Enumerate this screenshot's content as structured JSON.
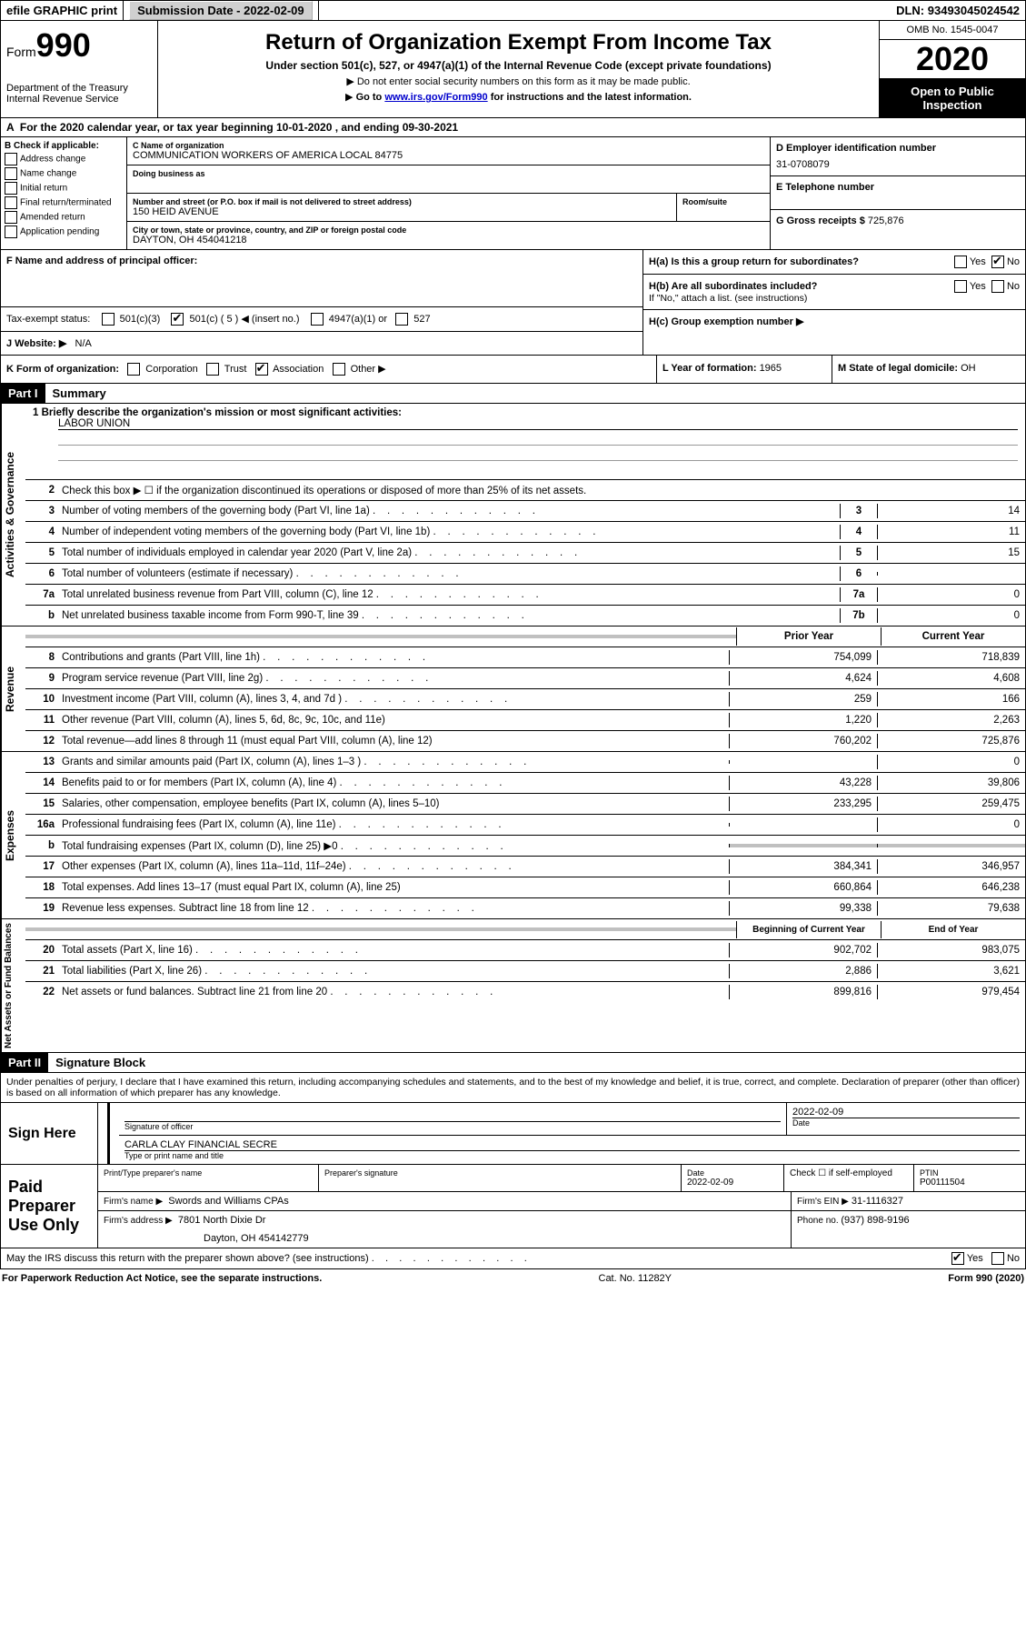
{
  "top": {
    "efile": "efile GRAPHIC print",
    "submission_label": "Submission Date - ",
    "submission_date": "2022-02-09",
    "dln_label": "DLN: ",
    "dln": "93493045024542"
  },
  "header": {
    "form_prefix": "Form",
    "form_number": "990",
    "dept1": "Department of the Treasury",
    "dept2": "Internal Revenue Service",
    "title": "Return of Organization Exempt From Income Tax",
    "subtitle": "Under section 501(c), 527, or 4947(a)(1) of the Internal Revenue Code (except private foundations)",
    "note1": "Do not enter social security numbers on this form as it may be made public.",
    "note2_pre": "Go to ",
    "note2_link": "www.irs.gov/Form990",
    "note2_post": " for instructions and the latest information.",
    "omb": "OMB No. 1545-0047",
    "year": "2020",
    "open": "Open to Public Inspection"
  },
  "rowA": "For the 2020 calendar year, or tax year beginning 10-01-2020    , and ending 09-30-2021",
  "sectionB": {
    "b_label": "B Check if applicable:",
    "b_items": [
      "Address change",
      "Name change",
      "Initial return",
      "Final return/terminated",
      "Amended return",
      "Application pending"
    ],
    "c_name_label": "C Name of organization",
    "c_name": "COMMUNICATION WORKERS OF AMERICA LOCAL 84775",
    "dba_label": "Doing business as",
    "addr_label": "Number and street (or P.O. box if mail is not delivered to street address)",
    "room_label": "Room/suite",
    "addr": "150 HEID AVENUE",
    "city_label": "City or town, state or province, country, and ZIP or foreign postal code",
    "city": "DAYTON, OH  454041218",
    "d_label": "D Employer identification number",
    "d_val": "31-0708079",
    "e_label": "E Telephone number",
    "g_label": "G Gross receipts $ ",
    "g_val": "725,876"
  },
  "sectionF": {
    "f_label": "F Name and address of principal officer:",
    "tax_exempt": "Tax-exempt status:",
    "opt_501c3": "501(c)(3)",
    "opt_501c": "501(c) ( 5 ) ◀ (insert no.)",
    "opt_4947": "4947(a)(1) or",
    "opt_527": "527",
    "website_label": "J   Website: ▶",
    "website": "N/A",
    "ha": "H(a)  Is this a group return for subordinates?",
    "hb": "H(b)  Are all subordinates included?",
    "hb_note": "If \"No,\" attach a list. (see instructions)",
    "hc": "H(c)  Group exemption number ▶",
    "yes": "Yes",
    "no": "No"
  },
  "rowK": {
    "k_label": "K Form of organization:",
    "corp": "Corporation",
    "trust": "Trust",
    "assoc": "Association",
    "other": "Other ▶",
    "l_label": "L Year of formation: ",
    "l_val": "1965",
    "m_label": "M State of legal domicile: ",
    "m_val": "OH"
  },
  "part1": {
    "header": "Part I",
    "title": "Summary",
    "line1_label": "1   Briefly describe the organization's mission or most significant activities:",
    "line1_val": "LABOR UNION",
    "line2": "Check this box ▶ ☐  if the organization discontinued its operations or disposed of more than 25% of its net assets.",
    "vert_ag": "Activities & Governance",
    "vert_rev": "Revenue",
    "vert_exp": "Expenses",
    "vert_net": "Net Assets or Fund Balances",
    "col_prior": "Prior Year",
    "col_current": "Current Year",
    "col_boy": "Beginning of Current Year",
    "col_eoy": "End of Year",
    "lines_ag": [
      {
        "n": "3",
        "desc": "Number of voting members of the governing body (Part VI, line 1a)",
        "box": "3",
        "v2": "14"
      },
      {
        "n": "4",
        "desc": "Number of independent voting members of the governing body (Part VI, line 1b)",
        "box": "4",
        "v2": "11"
      },
      {
        "n": "5",
        "desc": "Total number of individuals employed in calendar year 2020 (Part V, line 2a)",
        "box": "5",
        "v2": "15"
      },
      {
        "n": "6",
        "desc": "Total number of volunteers (estimate if necessary)",
        "box": "6",
        "v2": ""
      },
      {
        "n": "7a",
        "desc": "Total unrelated business revenue from Part VIII, column (C), line 12",
        "box": "7a",
        "v2": "0"
      },
      {
        "n": "b",
        "desc": "Net unrelated business taxable income from Form 990-T, line 39",
        "box": "7b",
        "v2": "0"
      }
    ],
    "lines_rev": [
      {
        "n": "8",
        "desc": "Contributions and grants (Part VIII, line 1h)",
        "v1": "754,099",
        "v2": "718,839"
      },
      {
        "n": "9",
        "desc": "Program service revenue (Part VIII, line 2g)",
        "v1": "4,624",
        "v2": "4,608"
      },
      {
        "n": "10",
        "desc": "Investment income (Part VIII, column (A), lines 3, 4, and 7d )",
        "v1": "259",
        "v2": "166"
      },
      {
        "n": "11",
        "desc": "Other revenue (Part VIII, column (A), lines 5, 6d, 8c, 9c, 10c, and 11e)",
        "v1": "1,220",
        "v2": "2,263"
      },
      {
        "n": "12",
        "desc": "Total revenue—add lines 8 through 11 (must equal Part VIII, column (A), line 12)",
        "v1": "760,202",
        "v2": "725,876"
      }
    ],
    "lines_exp": [
      {
        "n": "13",
        "desc": "Grants and similar amounts paid (Part IX, column (A), lines 1–3 )",
        "v1": "",
        "v2": "0"
      },
      {
        "n": "14",
        "desc": "Benefits paid to or for members (Part IX, column (A), line 4)",
        "v1": "43,228",
        "v2": "39,806"
      },
      {
        "n": "15",
        "desc": "Salaries, other compensation, employee benefits (Part IX, column (A), lines 5–10)",
        "v1": "233,295",
        "v2": "259,475"
      },
      {
        "n": "16a",
        "desc": "Professional fundraising fees (Part IX, column (A), line 11e)",
        "v1": "",
        "v2": "0"
      },
      {
        "n": "b",
        "desc": "Total fundraising expenses (Part IX, column (D), line 25) ▶0",
        "v1": "shaded",
        "v2": "shaded"
      },
      {
        "n": "17",
        "desc": "Other expenses (Part IX, column (A), lines 11a–11d, 11f–24e)",
        "v1": "384,341",
        "v2": "346,957"
      },
      {
        "n": "18",
        "desc": "Total expenses. Add lines 13–17 (must equal Part IX, column (A), line 25)",
        "v1": "660,864",
        "v2": "646,238"
      },
      {
        "n": "19",
        "desc": "Revenue less expenses. Subtract line 18 from line 12",
        "v1": "99,338",
        "v2": "79,638"
      }
    ],
    "lines_net": [
      {
        "n": "20",
        "desc": "Total assets (Part X, line 16)",
        "v1": "902,702",
        "v2": "983,075"
      },
      {
        "n": "21",
        "desc": "Total liabilities (Part X, line 26)",
        "v1": "2,886",
        "v2": "3,621"
      },
      {
        "n": "22",
        "desc": "Net assets or fund balances. Subtract line 21 from line 20",
        "v1": "899,816",
        "v2": "979,454"
      }
    ]
  },
  "part2": {
    "header": "Part II",
    "title": "Signature Block",
    "penalty": "Under penalties of perjury, I declare that I have examined this return, including accompanying schedules and statements, and to the best of my knowledge and belief, it is true, correct, and complete. Declaration of preparer (other than officer) is based on all information of which preparer has any knowledge.",
    "sign_here": "Sign Here",
    "sig_officer_label": "Signature of officer",
    "sig_date": "2022-02-09",
    "date_label": "Date",
    "officer_name": "CARLA CLAY  FINANCIAL SECRE",
    "name_title_label": "Type or print name and title",
    "paid": "Paid Preparer Use Only",
    "prep_name_label": "Print/Type preparer's name",
    "prep_sig_label": "Preparer's signature",
    "prep_date_label": "Date",
    "prep_date": "2022-02-09",
    "check_self": "Check ☐ if self-employed",
    "ptin_label": "PTIN",
    "ptin": "P00111504",
    "firm_name_label": "Firm's name     ▶",
    "firm_name": "Swords and Williams CPAs",
    "firm_ein_label": "Firm's EIN ▶",
    "firm_ein": "31-1116327",
    "firm_addr_label": "Firm's address ▶",
    "firm_addr1": "7801 North Dixie Dr",
    "firm_addr2": "Dayton, OH  454142779",
    "phone_label": "Phone no. ",
    "phone": "(937) 898-9196",
    "discuss": "May the IRS discuss this return with the preparer shown above? (see instructions)",
    "yes": "Yes",
    "no": "No"
  },
  "footer": {
    "paperwork": "For Paperwork Reduction Act Notice, see the separate instructions.",
    "catno": "Cat. No. 11282Y",
    "formver": "Form 990 (2020)"
  }
}
